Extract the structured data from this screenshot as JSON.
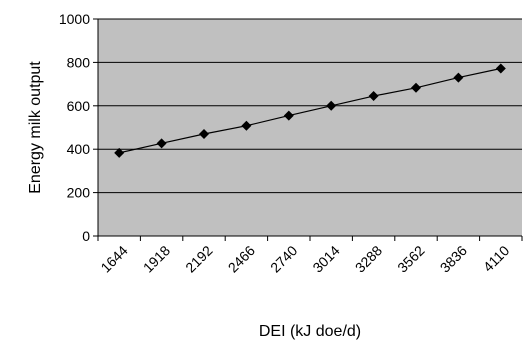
{
  "chart_data": {
    "type": "line",
    "title": "",
    "xlabel": "DEI (kJ doe/d)",
    "ylabel": "Energy milk output",
    "x": [
      1644,
      1918,
      2192,
      2466,
      2740,
      3014,
      3288,
      3562,
      3836,
      4110
    ],
    "x_tick_labels": [
      "1644",
      "1918",
      "2192",
      "2466",
      "2740",
      "3014",
      "3288",
      "3562",
      "3836",
      "4110"
    ],
    "series": [
      {
        "name": "",
        "values": [
          383,
          427,
          470,
          508,
          555,
          600,
          645,
          683,
          730,
          772
        ]
      }
    ],
    "ylim": [
      0,
      1000
    ],
    "y_ticks": [
      0,
      200,
      400,
      600,
      800,
      1000
    ],
    "grid": "horizontal",
    "legend": "none",
    "colors": {
      "plot_background": "#c0c0c0",
      "line": "#000000",
      "marker": "#000000",
      "gridline": "#000000"
    }
  }
}
